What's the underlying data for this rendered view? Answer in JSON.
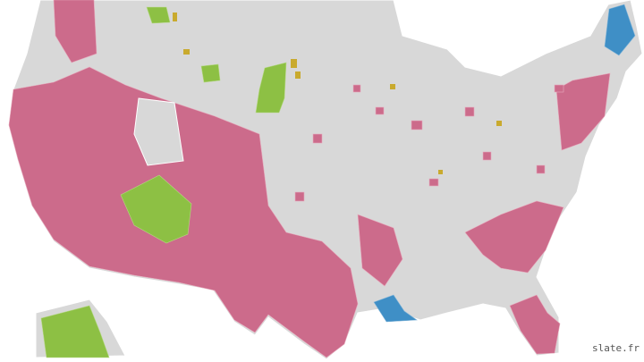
{
  "watermark": "slate.fr"
}
